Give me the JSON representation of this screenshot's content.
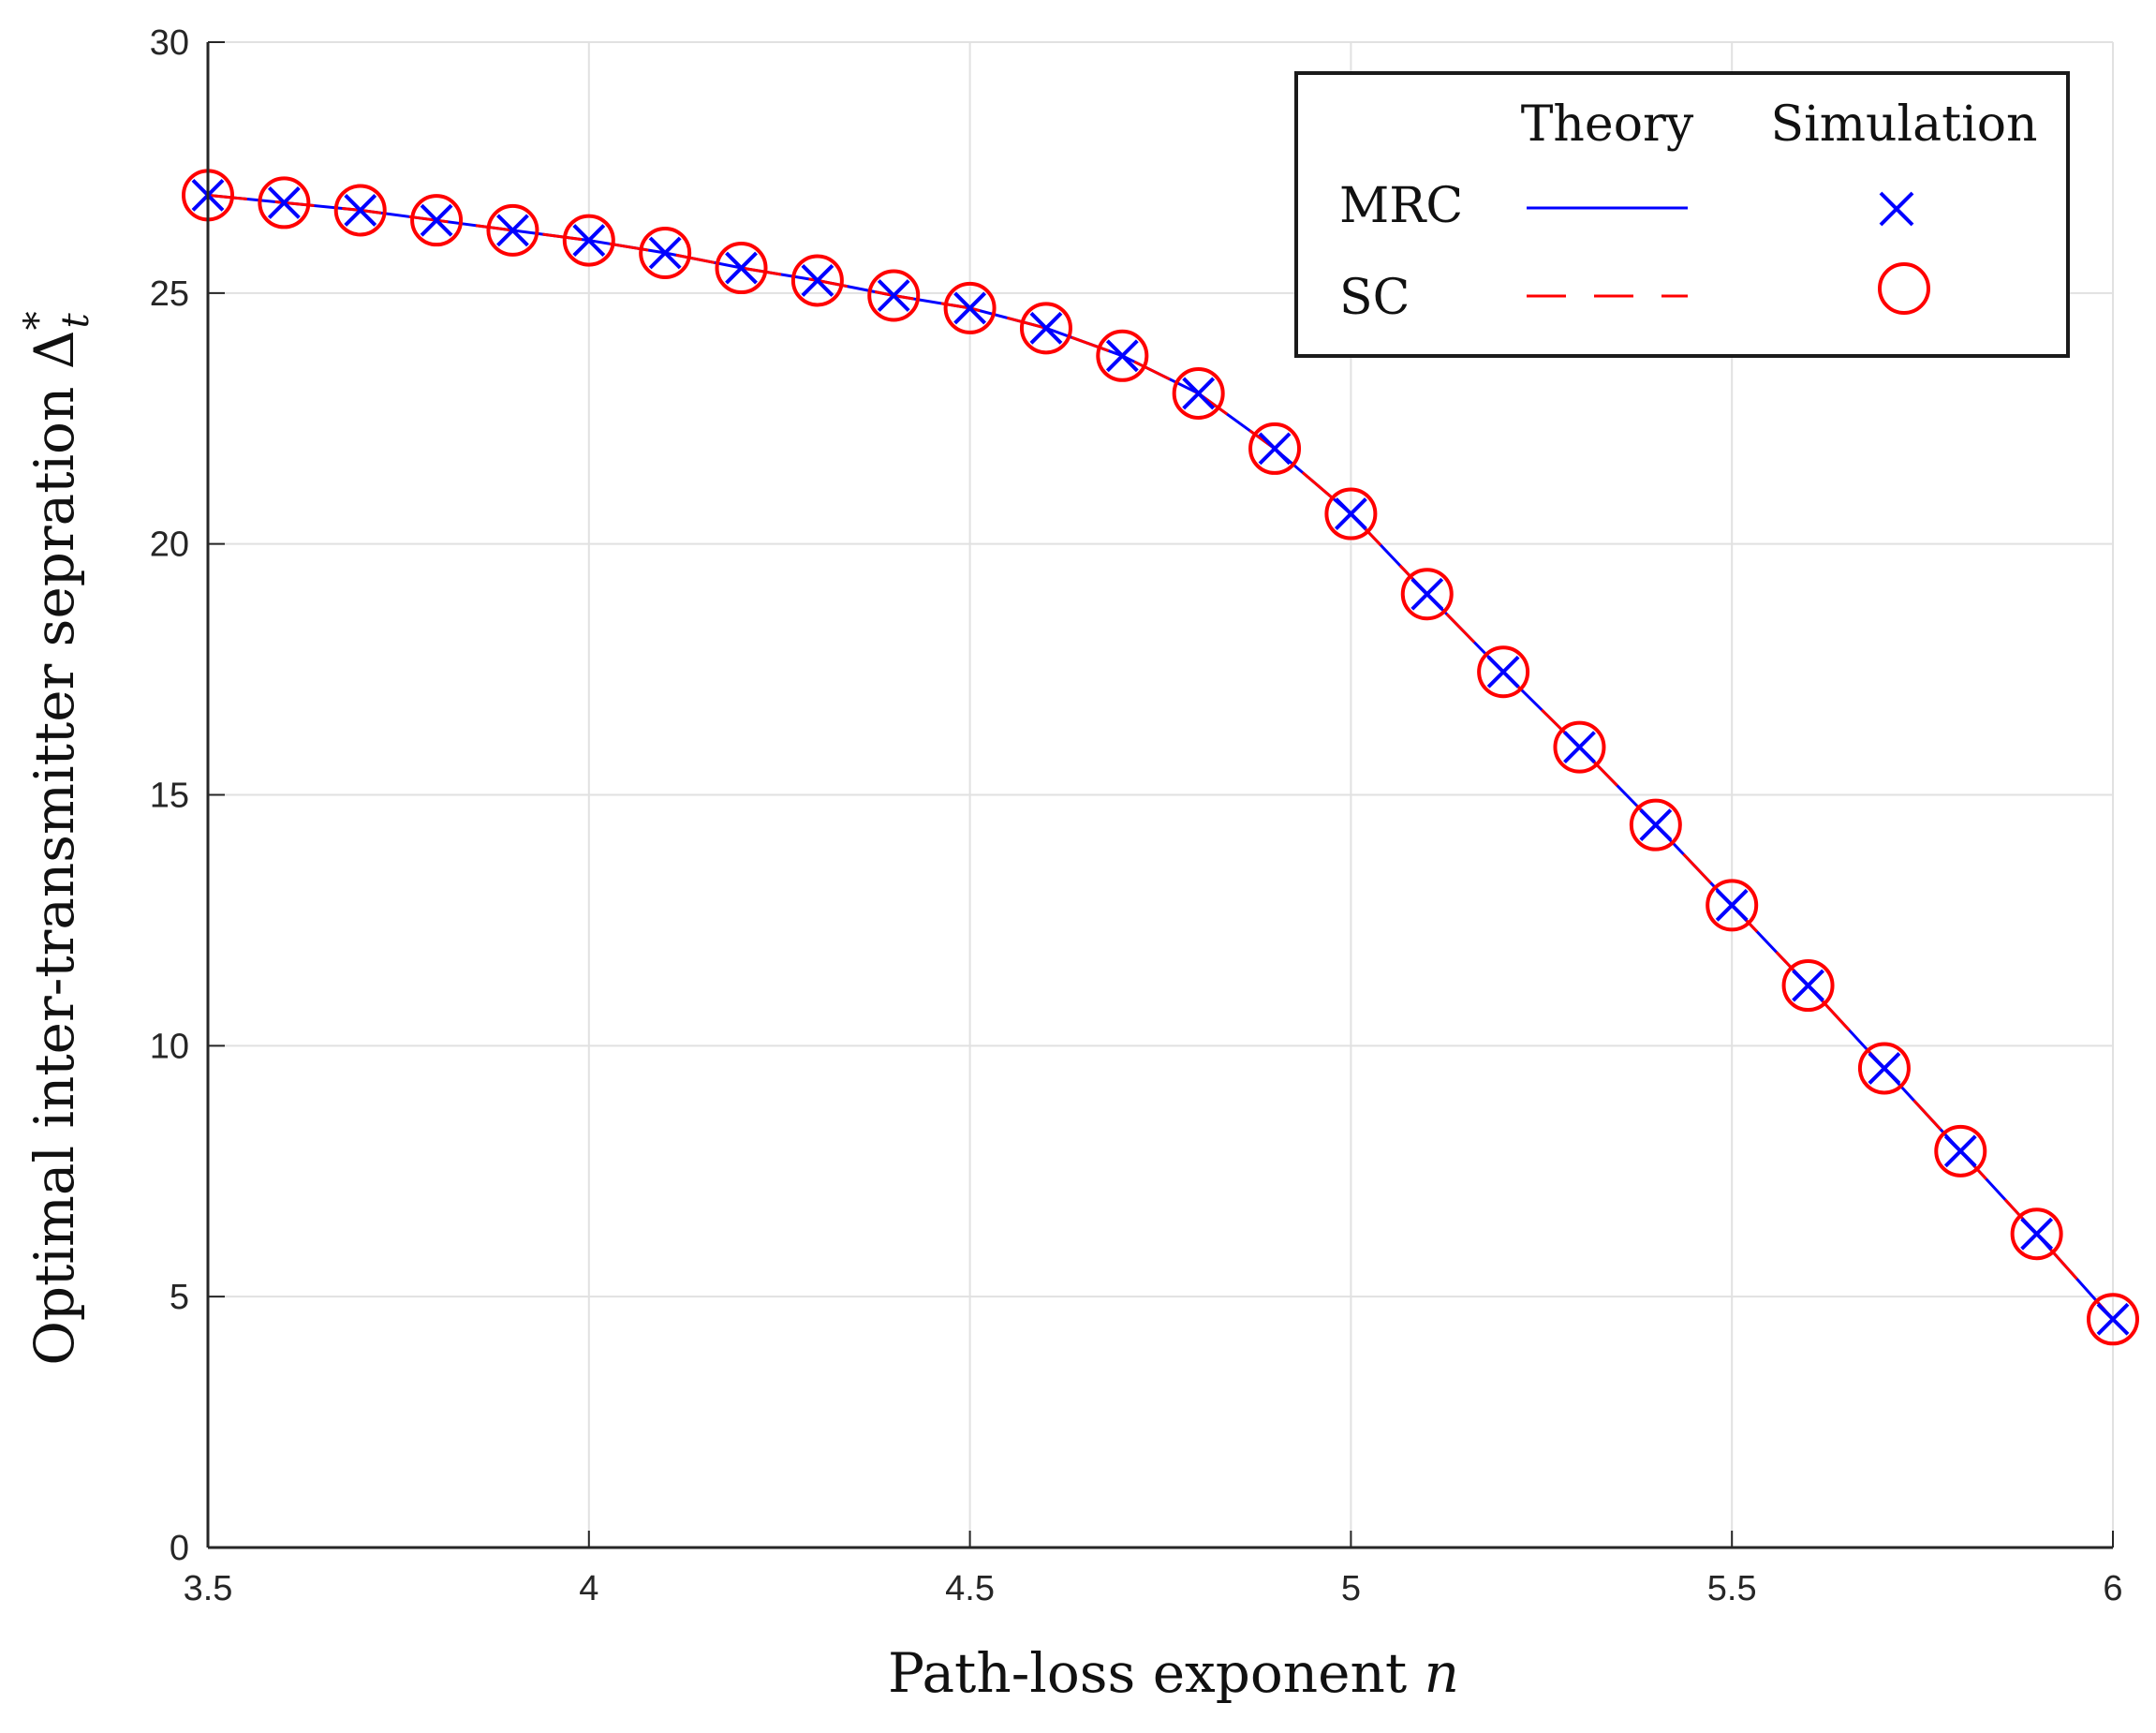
{
  "chart_data": {
    "type": "line",
    "xlabel": "Path-loss exponent",
    "xlabel_var": "n",
    "ylabel": "Optimal inter-transmitter sepration",
    "ylabel_symbol": "Δ",
    "ylabel_sup": "*",
    "ylabel_sub": "t",
    "xlim": [
      3.5,
      6
    ],
    "ylim": [
      0,
      30
    ],
    "xticks": [
      3.5,
      4,
      4.5,
      5,
      5.5,
      6
    ],
    "xtick_labels": [
      "3.5",
      "4",
      "4.5",
      "5",
      "5.5",
      "6"
    ],
    "yticks": [
      0,
      5,
      10,
      15,
      20,
      25,
      30
    ],
    "ytick_labels": [
      "0",
      "5",
      "10",
      "15",
      "20",
      "25",
      "30"
    ],
    "grid": true,
    "legend": {
      "placement": "top-right",
      "header_theory": "Theory",
      "header_simulation": "Simulation",
      "row_mrc": "MRC",
      "row_sc": "SC"
    },
    "x": [
      3.5,
      3.6,
      3.7,
      3.8,
      3.9,
      4.0,
      4.1,
      4.2,
      4.3,
      4.4,
      4.5,
      4.6,
      4.7,
      4.8,
      4.9,
      5.0,
      5.1,
      5.2,
      5.3,
      5.4,
      5.5,
      5.6,
      5.7,
      5.8,
      5.9,
      6.0
    ],
    "series": [
      {
        "name": "MRC Theory",
        "style": "solid-line",
        "color": "#0000ff",
        "values": [
          26.95,
          26.8,
          26.65,
          26.45,
          26.25,
          26.05,
          25.8,
          25.5,
          25.25,
          24.95,
          24.7,
          24.3,
          23.75,
          23.0,
          21.9,
          20.6,
          19.0,
          17.45,
          15.95,
          14.4,
          12.8,
          11.2,
          9.55,
          7.9,
          6.25,
          4.55
        ]
      },
      {
        "name": "SC Theory",
        "style": "dashed-line",
        "color": "#ff0000",
        "values": [
          26.95,
          26.8,
          26.65,
          26.45,
          26.25,
          26.05,
          25.8,
          25.5,
          25.25,
          24.95,
          24.7,
          24.3,
          23.75,
          23.0,
          21.9,
          20.6,
          19.0,
          17.45,
          15.95,
          14.4,
          12.8,
          11.2,
          9.55,
          7.9,
          6.25,
          4.55
        ]
      },
      {
        "name": "MRC Simulation",
        "style": "x-marker",
        "color": "#0000ff",
        "values": [
          26.95,
          26.8,
          26.65,
          26.45,
          26.25,
          26.05,
          25.8,
          25.5,
          25.25,
          24.95,
          24.7,
          24.3,
          23.75,
          23.0,
          21.9,
          20.6,
          19.0,
          17.45,
          15.95,
          14.4,
          12.8,
          11.2,
          9.55,
          7.9,
          6.25,
          4.55
        ]
      },
      {
        "name": "SC Simulation",
        "style": "circle-marker",
        "color": "#ff0000",
        "values": [
          26.95,
          26.8,
          26.65,
          26.45,
          26.25,
          26.05,
          25.8,
          25.5,
          25.25,
          24.95,
          24.7,
          24.3,
          23.75,
          23.0,
          21.9,
          20.6,
          19.0,
          17.45,
          15.95,
          14.4,
          12.8,
          11.2,
          9.55,
          7.9,
          6.25,
          4.55
        ]
      }
    ]
  }
}
